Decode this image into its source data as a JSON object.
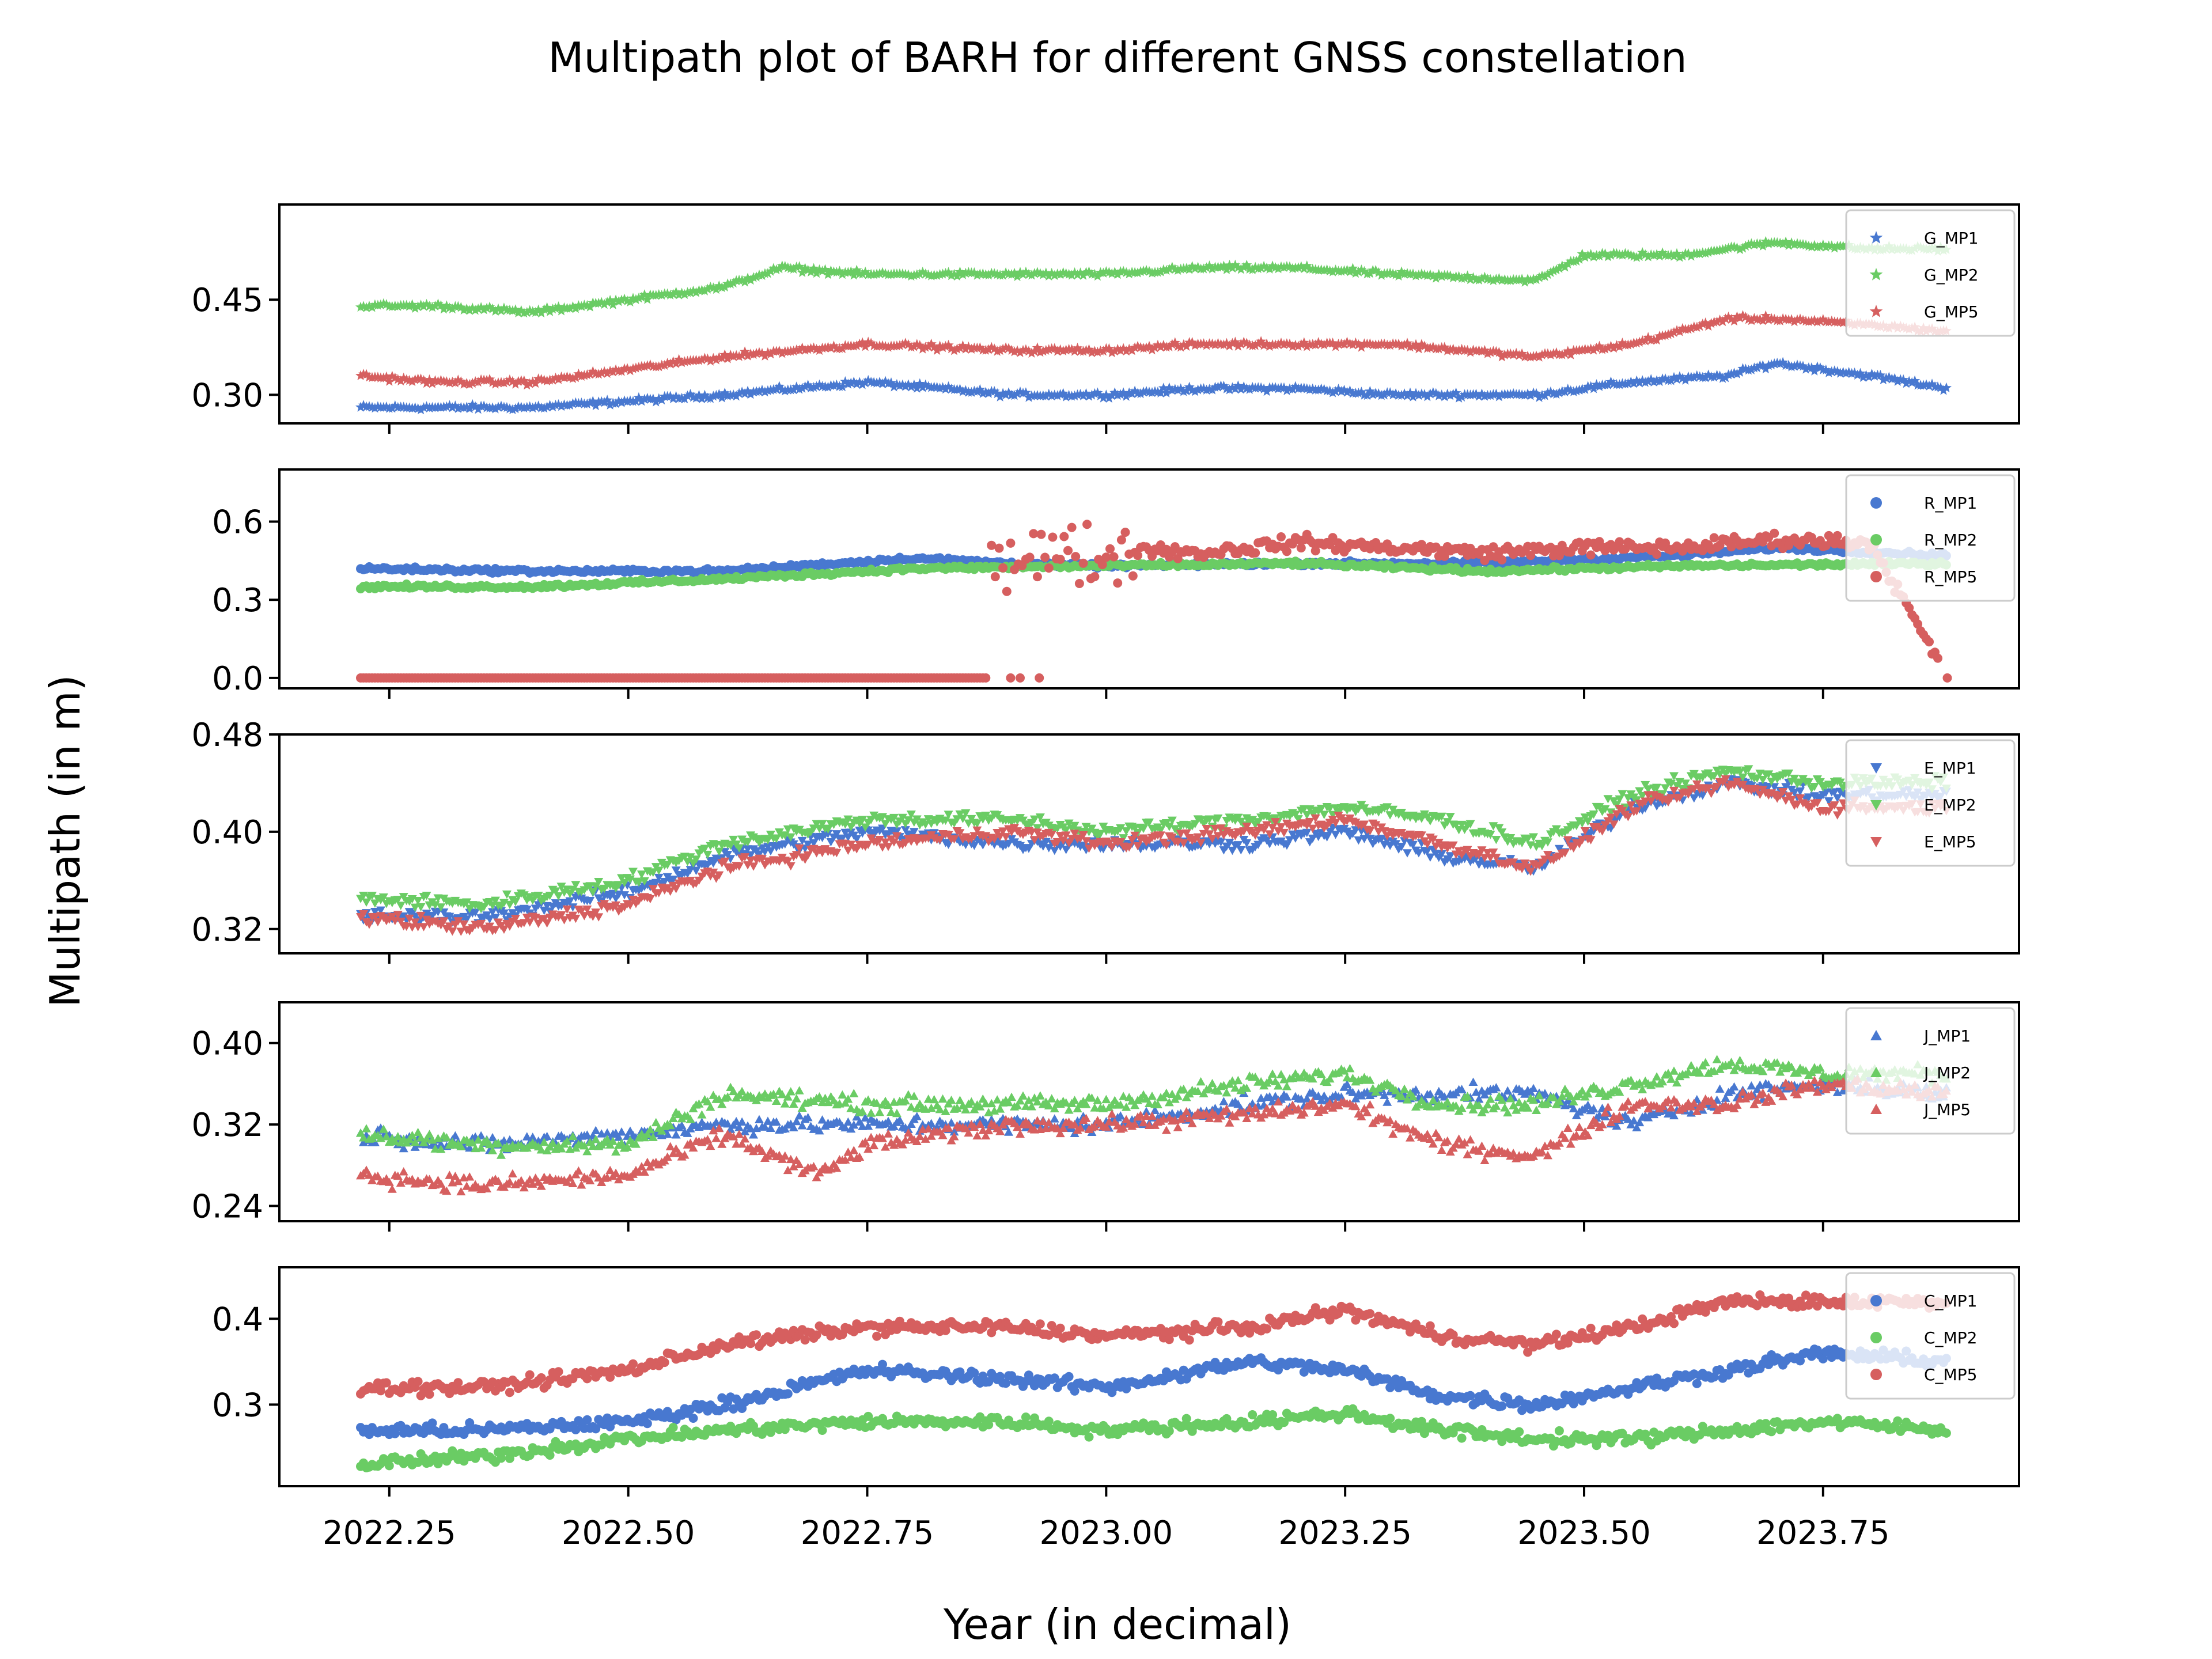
{
  "chart_data": {
    "type": "scatter",
    "title": "Multipath plot of BARH for different GNSS constellation",
    "xlabel": "Year (in decimal)",
    "ylabel": "Multipath (in m)",
    "x_range": [
      2022.135,
      2023.955
    ],
    "x_ticks": [
      2022.25,
      2022.5,
      2022.75,
      2023.0,
      2023.25,
      2023.5,
      2023.75
    ],
    "x_tick_labels": [
      "2022.25",
      "2022.50",
      "2022.75",
      "2023.00",
      "2023.25",
      "2023.50",
      "2023.75"
    ],
    "legend_position": "top-right",
    "colors": {
      "MP1": "#4878d0",
      "MP2": "#6acc64",
      "MP5": "#d65f5f"
    },
    "panels": [
      {
        "constellation": "G",
        "marker": "star",
        "ylim": [
          0.255,
          0.6
        ],
        "y_ticks": [
          0.3,
          0.45
        ],
        "y_tick_labels": [
          "0.30",
          "0.45"
        ],
        "series": [
          {
            "name": "G_MP1",
            "key": "MP1",
            "x": [
              2022.22,
              2022.3,
              2022.4,
              2022.5,
              2022.6,
              2022.75,
              2022.9,
              2023.0,
              2023.1,
              2023.2,
              2023.3,
              2023.45,
              2023.55,
              2023.65,
              2023.7,
              2023.8,
              2023.88
            ],
            "y": [
              0.28,
              0.28,
              0.28,
              0.29,
              0.3,
              0.32,
              0.3,
              0.3,
              0.31,
              0.31,
              0.3,
              0.3,
              0.32,
              0.33,
              0.35,
              0.33,
              0.31
            ]
          },
          {
            "name": "G_MP2",
            "key": "MP2",
            "x": [
              2022.22,
              2022.3,
              2022.4,
              2022.5,
              2022.6,
              2022.66,
              2022.75,
              2022.9,
              2023.0,
              2023.1,
              2023.2,
              2023.3,
              2023.45,
              2023.5,
              2023.6,
              2023.7,
              2023.8,
              2023.88
            ],
            "y": [
              0.44,
              0.44,
              0.43,
              0.45,
              0.47,
              0.5,
              0.49,
              0.49,
              0.49,
              0.5,
              0.5,
              0.49,
              0.48,
              0.52,
              0.52,
              0.54,
              0.53,
              0.53
            ]
          },
          {
            "name": "G_MP5",
            "key": "MP5",
            "x": [
              2022.22,
              2022.3,
              2022.4,
              2022.5,
              2022.6,
              2022.75,
              2022.9,
              2023.0,
              2023.1,
              2023.2,
              2023.3,
              2023.45,
              2023.55,
              2023.65,
              2023.7,
              2023.8,
              2023.88
            ],
            "y": [
              0.33,
              0.32,
              0.32,
              0.34,
              0.36,
              0.38,
              0.37,
              0.37,
              0.38,
              0.38,
              0.38,
              0.36,
              0.38,
              0.42,
              0.42,
              0.41,
              0.4
            ]
          }
        ]
      },
      {
        "constellation": "R",
        "marker": "circle",
        "ylim": [
          -0.04,
          0.8
        ],
        "y_ticks": [
          0.0,
          0.3,
          0.6
        ],
        "y_tick_labels": [
          "0.0",
          "0.3",
          "0.6"
        ],
        "series": [
          {
            "name": "R_MP1",
            "key": "MP1",
            "x": [
              2022.22,
              2022.4,
              2022.6,
              2022.8,
              2022.9,
              2023.0,
              2023.2,
              2023.4,
              2023.6,
              2023.7,
              2023.88
            ],
            "y": [
              0.42,
              0.41,
              0.41,
              0.46,
              0.44,
              0.43,
              0.44,
              0.44,
              0.47,
              0.5,
              0.47
            ]
          },
          {
            "name": "R_MP2",
            "key": "MP2",
            "x": [
              2022.22,
              2022.4,
              2022.6,
              2022.8,
              2023.0,
              2023.2,
              2023.4,
              2023.6,
              2023.88
            ],
            "y": [
              0.35,
              0.35,
              0.38,
              0.42,
              0.43,
              0.44,
              0.41,
              0.43,
              0.44
            ]
          },
          {
            "name": "R_MP5",
            "key": "MP5",
            "x": [
              2022.22,
              2022.5,
              2022.87,
              2022.88,
              2022.9,
              2022.95,
              2022.98,
              2023.02,
              2023.1,
              2023.2,
              2023.3,
              2023.4,
              2023.5,
              2023.6,
              2023.7,
              2023.8,
              2023.88
            ],
            "y": [
              0.0,
              0.0,
              0.0,
              0.4,
              0.65,
              0.3,
              0.7,
              0.5,
              0.48,
              0.52,
              0.5,
              0.48,
              0.5,
              0.5,
              0.53,
              0.52,
              0.0
            ]
          }
        ]
      },
      {
        "constellation": "E",
        "marker": "triangle-down",
        "ylim": [
          0.3,
          0.48
        ],
        "y_ticks": [
          0.32,
          0.4,
          0.48
        ],
        "y_tick_labels": [
          "0.32",
          "0.40",
          "0.48"
        ],
        "series": [
          {
            "name": "E_MP1",
            "key": "MP1",
            "x": [
              2022.22,
              2022.35,
              2022.5,
              2022.6,
              2022.75,
              2022.9,
              2023.0,
              2023.15,
              2023.25,
              2023.35,
              2023.45,
              2023.55,
              2023.65,
              2023.75,
              2023.88
            ],
            "y": [
              0.33,
              0.33,
              0.35,
              0.38,
              0.4,
              0.39,
              0.39,
              0.39,
              0.4,
              0.38,
              0.37,
              0.42,
              0.44,
              0.43,
              0.43
            ]
          },
          {
            "name": "E_MP2",
            "key": "MP2",
            "x": [
              2022.22,
              2022.35,
              2022.5,
              2022.6,
              2022.75,
              2022.9,
              2023.0,
              2023.15,
              2023.25,
              2023.35,
              2023.45,
              2023.55,
              2023.65,
              2023.75,
              2023.88
            ],
            "y": [
              0.345,
              0.34,
              0.36,
              0.39,
              0.41,
              0.41,
              0.4,
              0.41,
              0.42,
              0.41,
              0.39,
              0.43,
              0.45,
              0.44,
              0.44
            ]
          },
          {
            "name": "E_MP5",
            "key": "MP5",
            "x": [
              2022.22,
              2022.35,
              2022.5,
              2022.6,
              2022.75,
              2022.9,
              2023.0,
              2023.15,
              2023.25,
              2023.35,
              2023.45,
              2023.55,
              2023.65,
              2023.75,
              2023.88
            ],
            "y": [
              0.33,
              0.32,
              0.34,
              0.37,
              0.39,
              0.4,
              0.39,
              0.4,
              0.41,
              0.39,
              0.37,
              0.42,
              0.44,
              0.42,
              0.42
            ]
          }
        ]
      },
      {
        "constellation": "J",
        "marker": "triangle-up",
        "ylim": [
          0.225,
          0.44
        ],
        "y_ticks": [
          0.24,
          0.32,
          0.4
        ],
        "y_tick_labels": [
          "0.24",
          "0.32",
          "0.40"
        ],
        "series": [
          {
            "name": "J_MP1",
            "key": "MP1",
            "x": [
              2022.22,
              2022.35,
              2022.5,
              2022.6,
              2022.75,
              2022.9,
              2023.0,
              2023.15,
              2023.25,
              2023.35,
              2023.45,
              2023.55,
              2023.65,
              2023.75,
              2023.88
            ],
            "y": [
              0.31,
              0.3,
              0.31,
              0.32,
              0.32,
              0.32,
              0.32,
              0.34,
              0.35,
              0.35,
              0.35,
              0.32,
              0.35,
              0.36,
              0.35
            ]
          },
          {
            "name": "J_MP2",
            "key": "MP2",
            "x": [
              2022.22,
              2022.35,
              2022.5,
              2022.6,
              2022.75,
              2022.9,
              2023.0,
              2023.15,
              2023.25,
              2023.35,
              2023.45,
              2023.55,
              2023.65,
              2023.75,
              2023.88
            ],
            "y": [
              0.31,
              0.3,
              0.3,
              0.35,
              0.34,
              0.34,
              0.34,
              0.36,
              0.37,
              0.34,
              0.34,
              0.36,
              0.38,
              0.37,
              0.37
            ]
          },
          {
            "name": "J_MP5",
            "key": "MP5",
            "x": [
              2022.22,
              2022.35,
              2022.5,
              2022.6,
              2022.7,
              2022.75,
              2022.9,
              2023.0,
              2023.15,
              2023.25,
              2023.35,
              2023.45,
              2023.55,
              2023.65,
              2023.75,
              2023.88
            ],
            "y": [
              0.27,
              0.26,
              0.27,
              0.31,
              0.27,
              0.3,
              0.32,
              0.32,
              0.33,
              0.34,
              0.3,
              0.29,
              0.34,
              0.34,
              0.36,
              0.35
            ]
          }
        ]
      },
      {
        "constellation": "C",
        "marker": "circle",
        "ylim": [
          0.205,
          0.46
        ],
        "y_ticks": [
          0.3,
          0.4
        ],
        "y_tick_labels": [
          "0.3",
          "0.4"
        ],
        "series": [
          {
            "name": "C_MP1",
            "key": "MP1",
            "x": [
              2022.22,
              2022.35,
              2022.5,
              2022.6,
              2022.75,
              2022.9,
              2023.0,
              2023.15,
              2023.25,
              2023.35,
              2023.45,
              2023.55,
              2023.65,
              2023.75,
              2023.88
            ],
            "y": [
              0.27,
              0.27,
              0.28,
              0.3,
              0.34,
              0.33,
              0.32,
              0.35,
              0.34,
              0.31,
              0.3,
              0.32,
              0.34,
              0.36,
              0.35
            ]
          },
          {
            "name": "C_MP2",
            "key": "MP2",
            "x": [
              2022.22,
              2022.35,
              2022.5,
              2022.6,
              2022.75,
              2022.9,
              2023.0,
              2023.15,
              2023.25,
              2023.35,
              2023.45,
              2023.55,
              2023.65,
              2023.75,
              2023.88
            ],
            "y": [
              0.23,
              0.24,
              0.26,
              0.27,
              0.28,
              0.28,
              0.27,
              0.28,
              0.29,
              0.27,
              0.26,
              0.26,
              0.27,
              0.28,
              0.27
            ]
          },
          {
            "name": "C_MP5",
            "key": "MP5",
            "x": [
              2022.22,
              2022.35,
              2022.5,
              2022.6,
              2022.75,
              2022.9,
              2023.0,
              2023.15,
              2023.25,
              2023.35,
              2023.45,
              2023.55,
              2023.65,
              2023.75,
              2023.88
            ],
            "y": [
              0.32,
              0.32,
              0.34,
              0.37,
              0.39,
              0.39,
              0.38,
              0.39,
              0.41,
              0.38,
              0.37,
              0.39,
              0.42,
              0.42,
              0.42
            ]
          }
        ]
      }
    ]
  }
}
